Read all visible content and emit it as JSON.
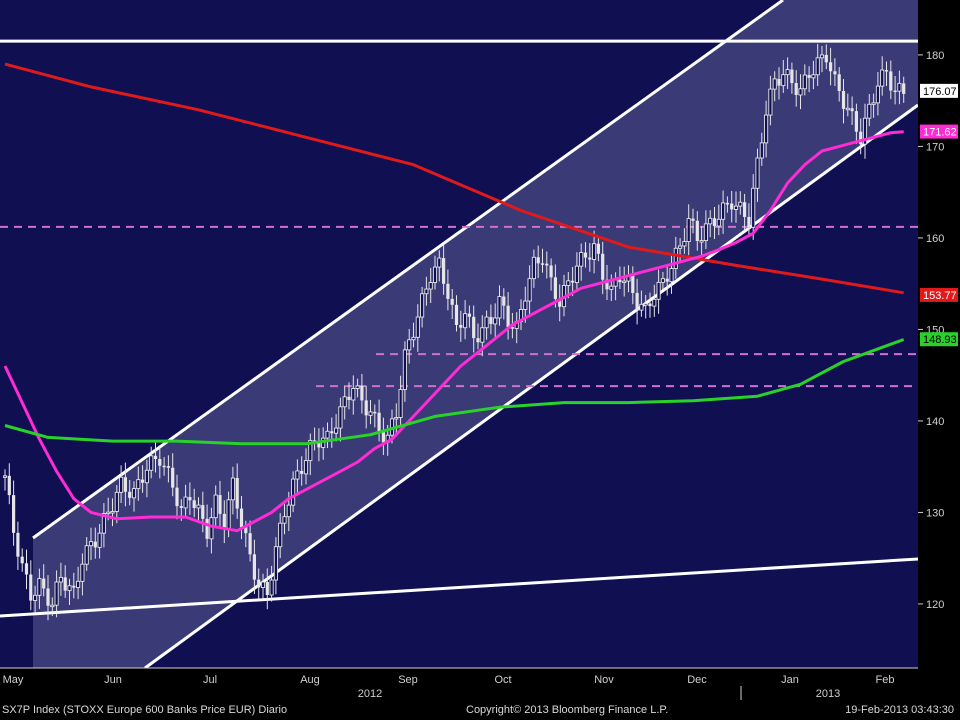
{
  "chart_data": {
    "type": "candlestick",
    "y_ticks": [
      120,
      130,
      140,
      150,
      160,
      170,
      180
    ],
    "ylim": [
      113,
      186
    ],
    "months": [
      "May",
      "Jun",
      "Jul",
      "Aug",
      "Sep",
      "Oct",
      "Nov",
      "Dec",
      "Jan",
      "Feb"
    ],
    "years": [
      "2012",
      "2013"
    ],
    "last_price": 176.07,
    "price_anchors": [
      [
        0,
        134
      ],
      [
        2,
        128
      ],
      [
        4,
        124
      ],
      [
        6,
        121
      ],
      [
        8,
        122
      ],
      [
        11,
        120
      ],
      [
        13,
        123
      ],
      [
        16,
        121
      ],
      [
        18,
        125
      ],
      [
        21,
        127
      ],
      [
        24,
        130
      ],
      [
        27,
        133
      ],
      [
        30,
        132
      ],
      [
        33,
        135
      ],
      [
        36,
        136
      ],
      [
        39,
        133
      ],
      [
        41,
        130
      ],
      [
        43,
        132
      ],
      [
        45,
        130
      ],
      [
        47,
        128
      ],
      [
        49,
        131
      ],
      [
        51,
        129
      ],
      [
        53,
        133
      ],
      [
        55,
        129
      ],
      [
        57,
        125
      ],
      [
        59,
        122
      ],
      [
        61,
        121
      ],
      [
        63,
        126
      ],
      [
        65,
        130
      ],
      [
        67,
        133
      ],
      [
        69,
        135
      ],
      [
        71,
        137
      ],
      [
        73,
        138
      ],
      [
        75,
        138
      ],
      [
        77,
        140
      ],
      [
        79,
        142
      ],
      [
        81,
        144
      ],
      [
        83,
        142
      ],
      [
        85,
        141
      ],
      [
        87,
        139
      ],
      [
        89,
        138
      ],
      [
        91,
        141
      ],
      [
        93,
        147
      ],
      [
        95,
        150
      ],
      [
        97,
        153
      ],
      [
        99,
        156
      ],
      [
        101,
        157
      ],
      [
        103,
        154
      ],
      [
        105,
        150
      ],
      [
        107,
        152
      ],
      [
        109,
        149
      ],
      [
        111,
        150
      ],
      [
        113,
        151
      ],
      [
        115,
        153
      ],
      [
        117,
        151
      ],
      [
        119,
        150
      ],
      [
        121,
        154
      ],
      [
        123,
        157
      ],
      [
        125,
        158
      ],
      [
        127,
        155
      ],
      [
        129,
        153
      ],
      [
        131,
        155
      ],
      [
        133,
        157
      ],
      [
        135,
        158
      ],
      [
        137,
        159
      ],
      [
        139,
        156
      ],
      [
        141,
        154
      ],
      [
        143,
        156
      ],
      [
        145,
        155
      ],
      [
        147,
        153
      ],
      [
        149,
        152
      ],
      [
        151,
        154
      ],
      [
        153,
        155
      ],
      [
        155,
        157
      ],
      [
        157,
        159
      ],
      [
        159,
        162
      ],
      [
        161,
        160
      ],
      [
        163,
        161
      ],
      [
        165,
        162
      ],
      [
        167,
        163
      ],
      [
        169,
        164
      ],
      [
        171,
        163
      ],
      [
        173,
        162
      ],
      [
        175,
        168
      ],
      [
        177,
        174
      ],
      [
        179,
        177
      ],
      [
        181,
        178
      ],
      [
        183,
        177
      ],
      [
        185,
        176
      ],
      [
        187,
        178
      ],
      [
        189,
        179
      ],
      [
        191,
        180
      ],
      [
        193,
        177
      ],
      [
        195,
        175
      ],
      [
        197,
        173
      ],
      [
        199,
        171
      ],
      [
        201,
        174
      ],
      [
        203,
        177
      ],
      [
        205,
        178
      ],
      [
        207,
        176
      ],
      [
        209,
        176
      ]
    ],
    "series": [
      {
        "name": "",
        "color": "#e01a1a",
        "points": [
          [
            0,
            179
          ],
          [
            20,
            176.5
          ],
          [
            45,
            174
          ],
          [
            70,
            171
          ],
          [
            95,
            168
          ],
          [
            120,
            163
          ],
          [
            145,
            159
          ],
          [
            170,
            157
          ],
          [
            190,
            155.5
          ],
          [
            209,
            154
          ]
        ]
      },
      {
        "name": "",
        "color": "#ff2bd5",
        "points": [
          [
            0,
            146
          ],
          [
            4,
            142
          ],
          [
            8,
            138
          ],
          [
            12,
            134.5
          ],
          [
            16,
            131.5
          ],
          [
            20,
            130
          ],
          [
            26,
            129.3
          ],
          [
            34,
            129.5
          ],
          [
            42,
            129.5
          ],
          [
            48,
            128.5
          ],
          [
            54,
            128
          ],
          [
            58,
            129
          ],
          [
            62,
            130
          ],
          [
            66,
            131.5
          ],
          [
            70,
            132.5
          ],
          [
            74,
            133.5
          ],
          [
            78,
            134.5
          ],
          [
            82,
            135.5
          ],
          [
            86,
            137
          ],
          [
            90,
            138
          ],
          [
            94,
            140
          ],
          [
            98,
            142
          ],
          [
            102,
            144
          ],
          [
            106,
            146
          ],
          [
            110,
            147.5
          ],
          [
            114,
            149
          ],
          [
            118,
            150.5
          ],
          [
            122,
            151.5
          ],
          [
            126,
            152.5
          ],
          [
            130,
            153.5
          ],
          [
            134,
            154.5
          ],
          [
            138,
            155
          ],
          [
            142,
            155.5
          ],
          [
            146,
            156
          ],
          [
            150,
            156.5
          ],
          [
            154,
            157
          ],
          [
            158,
            157.5
          ],
          [
            162,
            158
          ],
          [
            166,
            158.7
          ],
          [
            170,
            159.5
          ],
          [
            174,
            160.5
          ],
          [
            178,
            163
          ],
          [
            182,
            166
          ],
          [
            186,
            168
          ],
          [
            190,
            169.5
          ],
          [
            194,
            170
          ],
          [
            198,
            170.5
          ],
          [
            202,
            171
          ],
          [
            206,
            171.5
          ],
          [
            209,
            171.6
          ]
        ]
      },
      {
        "name": "",
        "color": "#28d228",
        "points": [
          [
            0,
            139.5
          ],
          [
            10,
            138.2
          ],
          [
            25,
            137.8
          ],
          [
            40,
            137.8
          ],
          [
            55,
            137.5
          ],
          [
            70,
            137.5
          ],
          [
            85,
            138.5
          ],
          [
            100,
            140.5
          ],
          [
            115,
            141.5
          ],
          [
            130,
            142
          ],
          [
            145,
            142
          ],
          [
            160,
            142.2
          ],
          [
            175,
            142.7
          ],
          [
            185,
            144
          ],
          [
            195,
            146.5
          ],
          [
            209,
            148.9
          ]
        ]
      }
    ],
    "horizontal_levels": [
      {
        "value": 181.5,
        "style": "solid",
        "color": "#ffffff"
      },
      {
        "value": 161.2,
        "style": "dashed",
        "color": "#d070d0"
      },
      {
        "value": 147.3,
        "style": "dashed",
        "color": "#d070d0"
      },
      {
        "value": 143.8,
        "style": "dashed",
        "color": "#d070d0"
      }
    ],
    "price_labels": [
      {
        "text": "176.07",
        "value": 176.07,
        "bg": "#ffffff",
        "fg": "#000000"
      },
      {
        "text": "171.62",
        "value": 171.62,
        "bg": "#ff2bd5",
        "fg": "#ffffff"
      },
      {
        "text": "153.77",
        "value": 153.77,
        "bg": "#e01a1a",
        "fg": "#ffffff"
      },
      {
        "text": "148.93",
        "value": 148.93,
        "bg": "#28d228",
        "fg": "#000000"
      }
    ]
  },
  "footer": {
    "left": "SX7P Index (STOXX Europe 600 Banks Price EUR)  Diario",
    "center": "Copyright© 2013 Bloomberg Finance L.P.",
    "right": "19-Feb-2013 03:43:30"
  }
}
